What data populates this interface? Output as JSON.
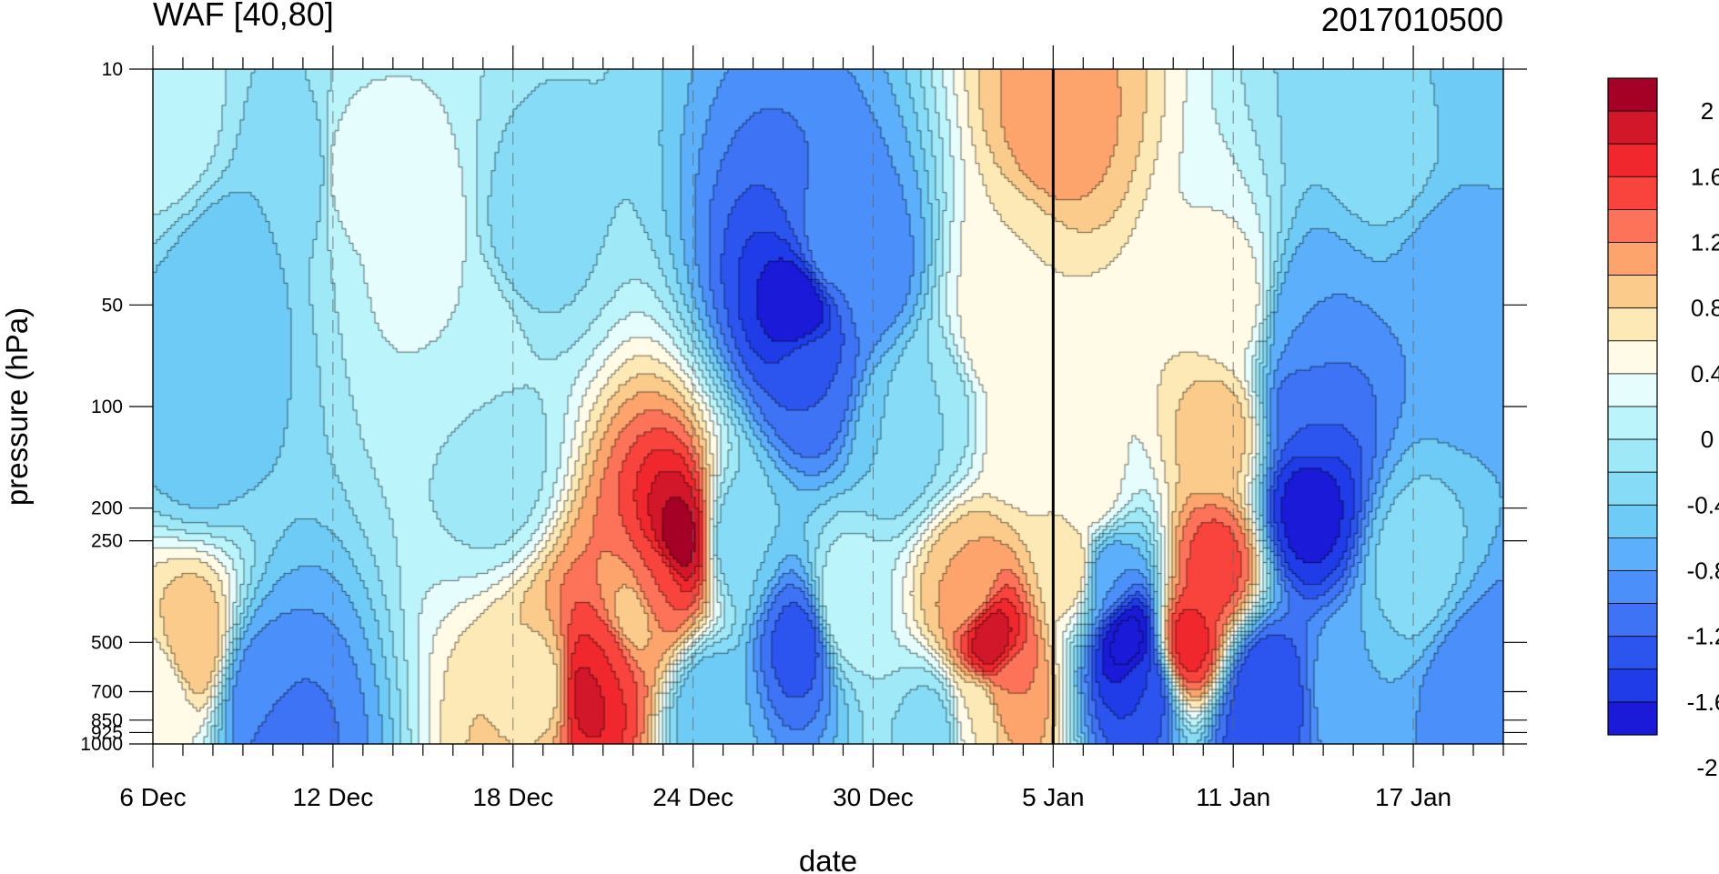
{
  "chart_data": {
    "type": "heatmap",
    "title_left": "WAF [40,80]",
    "title_right": "2017010500",
    "xlabel": "date",
    "ylabel": "pressure (hPa)",
    "x_tick_labels": [
      "6 Dec",
      "12 Dec",
      "18 Dec",
      "24 Dec",
      "30 Dec",
      "5 Jan",
      "11 Jan",
      "17 Jan"
    ],
    "x_range_days": [
      0,
      45
    ],
    "x_major_tick_days": [
      0,
      6,
      12,
      18,
      24,
      30,
      36,
      42
    ],
    "forecast_start_day": 30,
    "y_ticks": [
      10,
      50,
      100,
      200,
      250,
      500,
      700,
      850,
      925,
      1000
    ],
    "y_tick_labels": [
      "10",
      "50",
      "100",
      "200",
      "250",
      "500",
      "700",
      "850",
      "925",
      "1000"
    ],
    "y_range": [
      10,
      1000
    ],
    "y_scale": "log",
    "y_reversed": true,
    "colorbar": {
      "label_values": [
        "2",
        "1.6",
        "1.2",
        "0.8",
        "0.4",
        "0",
        "-0.4",
        "-0.8",
        "-1.2",
        "-1.6",
        "-2"
      ],
      "levels": [
        2.2,
        2.0,
        1.8,
        1.6,
        1.4,
        1.2,
        1.0,
        0.8,
        0.6,
        0.4,
        0.2,
        0.0,
        -0.2,
        -0.4,
        -0.6,
        -0.8,
        -1.0,
        -1.2,
        -1.4,
        -1.6,
        -1.8,
        -2.0,
        -2.2
      ],
      "colors": [
        "#a50026",
        "#d3172a",
        "#f0282e",
        "#f8443c",
        "#fd7359",
        "#fda46d",
        "#fbcb8c",
        "#fde9b5",
        "#fffbe6",
        "#e6fdfd",
        "#bbf4fb",
        "#9ee8f8",
        "#86dcf7",
        "#6ecbf6",
        "#5cb0fb",
        "#4b8ffa",
        "#3e73f6",
        "#2c55f0",
        "#1f3ce8",
        "#1a1ad8"
      ]
    },
    "features": [
      {
        "day": 14.5,
        "p": 700,
        "value": 1.9
      },
      {
        "day": 15.1,
        "p": 580,
        "value": 1.6
      },
      {
        "day": 17.5,
        "p": 250,
        "value": 2.1
      },
      {
        "day": 16.8,
        "p": 330,
        "value": 1.4
      },
      {
        "day": 16.0,
        "p": 420,
        "value": 0.9
      },
      {
        "day": 13.0,
        "p": 680,
        "value": 0.7
      },
      {
        "day": 22.0,
        "p": 80,
        "value": -1.2
      },
      {
        "day": 21.6,
        "p": 50,
        "value": -1.8
      },
      {
        "day": 22.5,
        "p": 35,
        "value": -0.9
      },
      {
        "day": 19.5,
        "p": 250,
        "value": -0.4
      },
      {
        "day": 21.6,
        "p": 500,
        "value": -1.3
      },
      {
        "day": 18.5,
        "p": 800,
        "value": -0.6
      },
      {
        "day": 27.9,
        "p": 500,
        "value": 2.0
      },
      {
        "day": 27.2,
        "p": 350,
        "value": 1.0
      },
      {
        "day": 28.5,
        "p": 680,
        "value": 1.2
      },
      {
        "day": 32.5,
        "p": 500,
        "value": -1.9
      },
      {
        "day": 31.8,
        "p": 320,
        "value": -0.8
      },
      {
        "day": 33.0,
        "p": 680,
        "value": -1.4
      },
      {
        "day": 30.6,
        "p": 300,
        "value": 0.8
      },
      {
        "day": 28.0,
        "p": 60,
        "value": 0.5
      },
      {
        "day": 29.0,
        "p": 120,
        "value": 0.5
      },
      {
        "day": 30.0,
        "p": 15,
        "value": 1.1
      },
      {
        "day": 28.7,
        "p": 40,
        "value": 0.6
      },
      {
        "day": 34.5,
        "p": 500,
        "value": 1.7
      },
      {
        "day": 35.4,
        "p": 300,
        "value": 1.5
      },
      {
        "day": 35.5,
        "p": 120,
        "value": 0.9
      },
      {
        "day": 36.0,
        "p": 50,
        "value": 0.5
      },
      {
        "day": 38.5,
        "p": 200,
        "value": -1.7
      },
      {
        "day": 38.5,
        "p": 100,
        "value": -1.2
      },
      {
        "day": 38.3,
        "p": 60,
        "value": -0.8
      },
      {
        "day": 37.0,
        "p": 700,
        "value": -1.4
      },
      {
        "day": 36.7,
        "p": 900,
        "value": -1.3
      },
      {
        "day": 40.0,
        "p": 700,
        "value": -0.6
      },
      {
        "day": 42.0,
        "p": 300,
        "value": -0.3
      },
      {
        "day": 43.5,
        "p": 50,
        "value": -0.8
      },
      {
        "day": 44.5,
        "p": 10,
        "value": -0.5
      },
      {
        "day": 6.5,
        "p": 20,
        "value": 0.3
      },
      {
        "day": 9.0,
        "p": 30,
        "value": 0.3
      },
      {
        "day": 10.5,
        "p": 60,
        "value": 0.2
      },
      {
        "day": 5.0,
        "p": 20,
        "value": -0.4
      },
      {
        "day": 0.5,
        "p": 15,
        "value": 0.1
      },
      {
        "day": 1.5,
        "p": 120,
        "value": -0.5
      },
      {
        "day": 1.3,
        "p": 520,
        "value": 1.0
      },
      {
        "day": 0.3,
        "p": 700,
        "value": 0.4
      },
      {
        "day": 3.5,
        "p": 700,
        "value": -0.9
      },
      {
        "day": 4.2,
        "p": 950,
        "value": -1.1
      },
      {
        "day": 2.3,
        "p": 45,
        "value": -0.6
      },
      {
        "day": 11.5,
        "p": 150,
        "value": -0.1
      },
      {
        "day": 12.5,
        "p": 30,
        "value": -0.3
      },
      {
        "day": 26.0,
        "p": 100,
        "value": -0.2
      },
      {
        "day": 24.0,
        "p": 40,
        "value": -0.9
      },
      {
        "day": 23.0,
        "p": 400,
        "value": 0.2
      },
      {
        "day": 26.0,
        "p": 900,
        "value": -0.3
      },
      {
        "day": 24.8,
        "p": 120,
        "value": -0.4
      },
      {
        "day": 41.0,
        "p": 15,
        "value": -0.3
      },
      {
        "day": 44.0,
        "p": 700,
        "value": -1.0
      },
      {
        "day": 27.5,
        "p": 800,
        "value": 0.6
      },
      {
        "day": 31.3,
        "p": 180,
        "value": 0.5
      }
    ]
  }
}
